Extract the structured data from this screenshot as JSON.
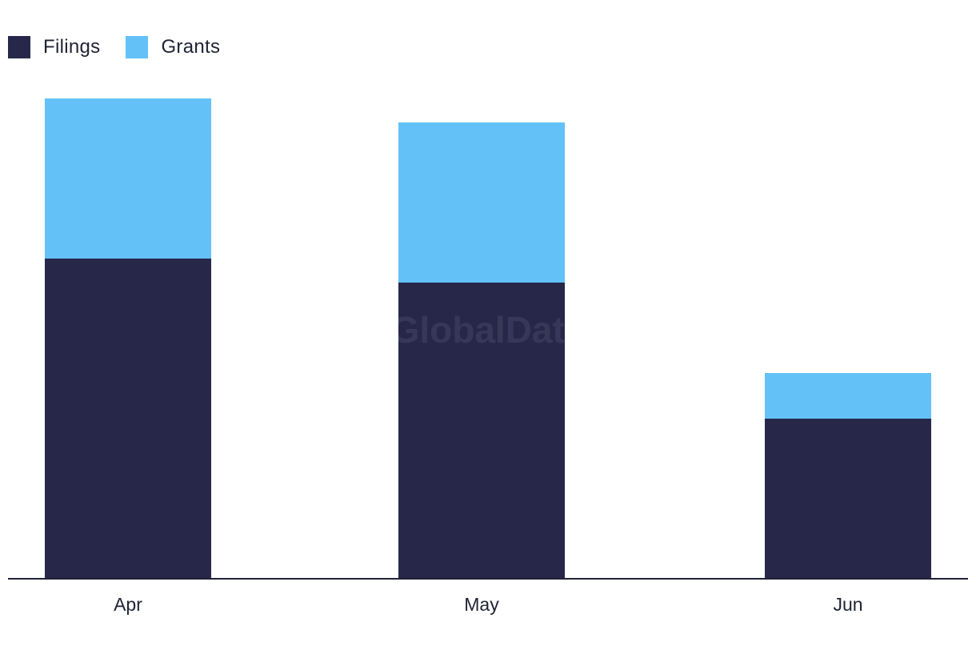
{
  "chart_data": {
    "type": "bar",
    "stacked": true,
    "categories": [
      "Apr",
      "May",
      "Jun"
    ],
    "series": [
      {
        "name": "Filings",
        "color": "#272849",
        "values": [
          400,
          370,
          200
        ]
      },
      {
        "name": "Grants",
        "color": "#63c1f8",
        "values": [
          200,
          200,
          57
        ]
      }
    ],
    "title": "",
    "xlabel": "",
    "ylabel": "",
    "ylim": [
      0,
      600
    ],
    "grid": false,
    "legend_position": "top-left",
    "watermark": "GlobalData"
  }
}
